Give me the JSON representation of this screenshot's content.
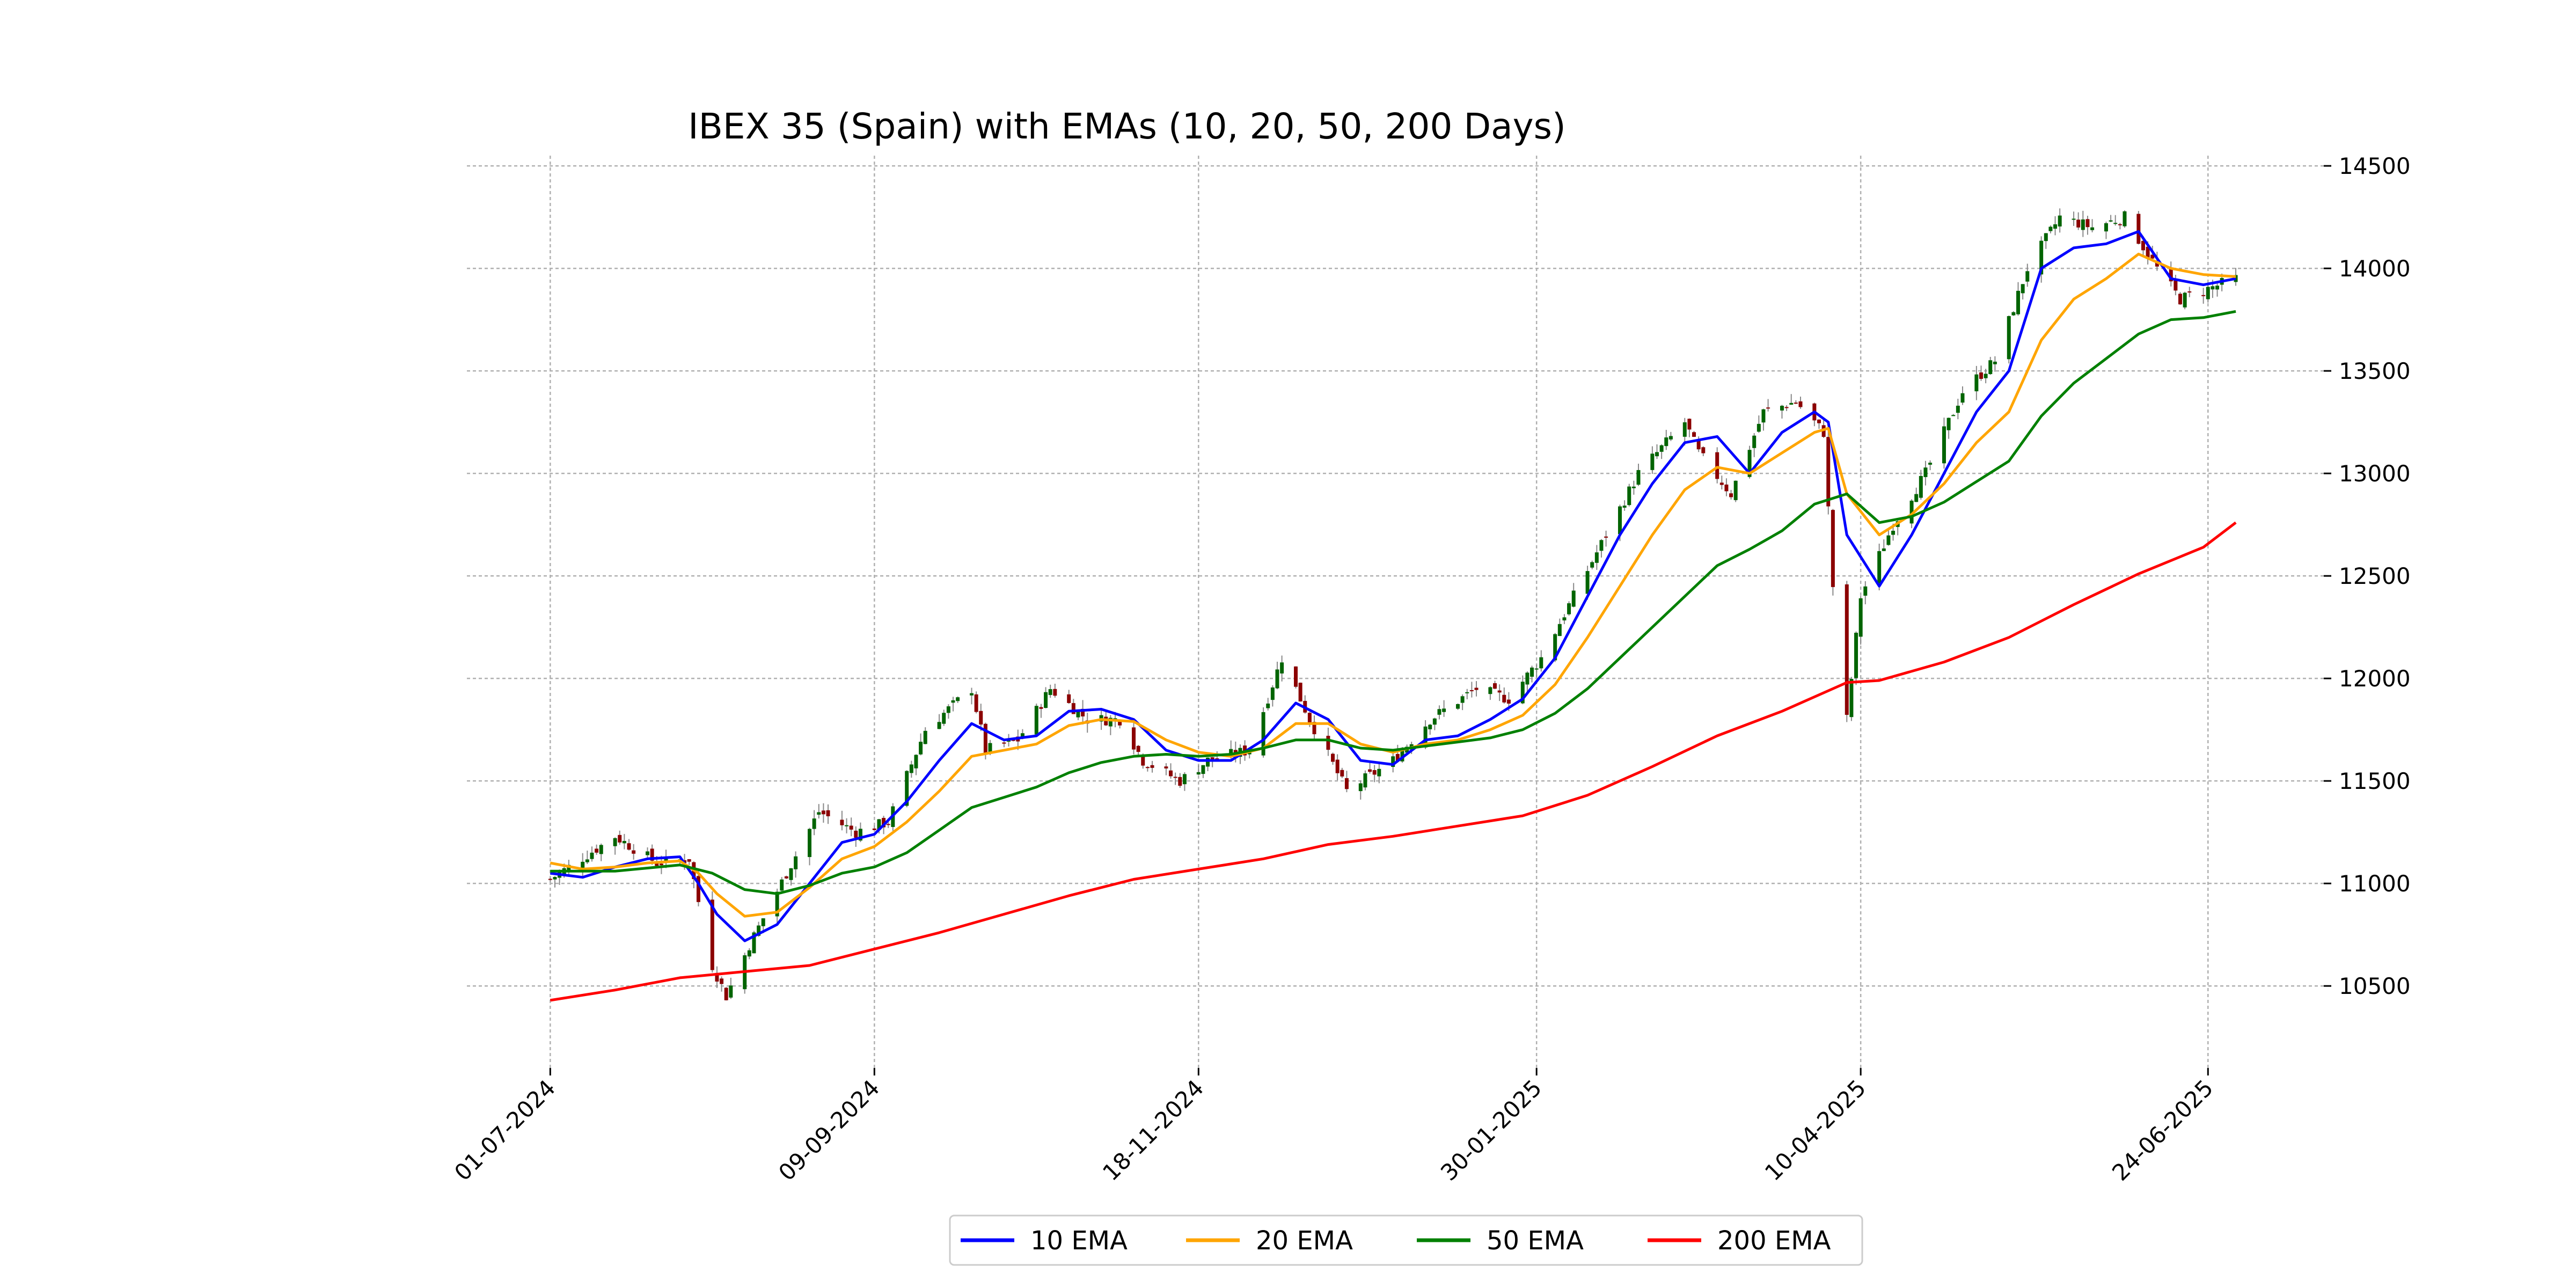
{
  "chart_data": {
    "type": "line",
    "title": "IBEX 35 (Spain) with EMAs (10, 20, 50, 200 Days)",
    "xlabel": "",
    "ylabel": "",
    "x_tick_labels": [
      "01-07-2024",
      "09-09-2024",
      "18-11-2024",
      "30-01-2025",
      "10-04-2025",
      "24-06-2025"
    ],
    "x_ticks": [
      "2024-07-01",
      "2024-09-09",
      "2024-11-18",
      "2025-01-30",
      "2025-04-10",
      "2025-06-24"
    ],
    "x_range": [
      "2024-06-13",
      "2025-07-19"
    ],
    "y_ticks": [
      10500,
      11000,
      11500,
      12000,
      12500,
      13000,
      13500,
      14000,
      14500
    ],
    "y_tick_labels": [
      "10500",
      "11000",
      "11500",
      "12000",
      "12500",
      "13000",
      "13500",
      "14000",
      "14500"
    ],
    "ylim": [
      10100,
      14550
    ],
    "grid": true,
    "y_axis_side": "right",
    "legend_placement": "bottom-center",
    "candle_colors": {
      "up": "#006400",
      "down": "#8b0000"
    },
    "candles_close": [
      {
        "date": "2024-07-01",
        "close": 11020
      },
      {
        "date": "2024-07-15",
        "close": 11230
      },
      {
        "date": "2024-07-24",
        "close": 11100
      },
      {
        "date": "2024-07-31",
        "close": 11120
      },
      {
        "date": "2024-08-05",
        "close": 10600
      },
      {
        "date": "2024-08-08",
        "close": 10450
      },
      {
        "date": "2024-08-13",
        "close": 10700
      },
      {
        "date": "2024-08-21",
        "close": 11050
      },
      {
        "date": "2024-08-28",
        "close": 11350
      },
      {
        "date": "2024-09-05",
        "close": 11250
      },
      {
        "date": "2024-09-12",
        "close": 11300
      },
      {
        "date": "2024-09-20",
        "close": 11750
      },
      {
        "date": "2024-09-30",
        "close": 11950
      },
      {
        "date": "2024-10-03",
        "close": 11650
      },
      {
        "date": "2024-10-10",
        "close": 11700
      },
      {
        "date": "2024-10-17",
        "close": 11950
      },
      {
        "date": "2024-10-25",
        "close": 11800
      },
      {
        "date": "2024-11-01",
        "close": 11800
      },
      {
        "date": "2024-11-06",
        "close": 11600
      },
      {
        "date": "2024-11-14",
        "close": 11500
      },
      {
        "date": "2024-11-20",
        "close": 11600
      },
      {
        "date": "2024-11-29",
        "close": 11650
      },
      {
        "date": "2024-12-06",
        "close": 12100
      },
      {
        "date": "2024-12-12",
        "close": 11800
      },
      {
        "date": "2024-12-20",
        "close": 11450
      },
      {
        "date": "2024-12-30",
        "close": 11600
      },
      {
        "date": "2025-01-07",
        "close": 11800
      },
      {
        "date": "2025-01-17",
        "close": 11950
      },
      {
        "date": "2025-01-24",
        "close": 11900
      },
      {
        "date": "2025-01-31",
        "close": 12100
      },
      {
        "date": "2025-02-07",
        "close": 12400
      },
      {
        "date": "2025-02-14",
        "close": 12700
      },
      {
        "date": "2025-02-21",
        "close": 13000
      },
      {
        "date": "2025-03-03",
        "close": 13250
      },
      {
        "date": "2025-03-06",
        "close": 13100
      },
      {
        "date": "2025-03-13",
        "close": 12900
      },
      {
        "date": "2025-03-20",
        "close": 13300
      },
      {
        "date": "2025-03-27",
        "close": 13350
      },
      {
        "date": "2025-04-02",
        "close": 13200
      },
      {
        "date": "2025-04-04",
        "close": 12450
      },
      {
        "date": "2025-04-07",
        "close": 11800
      },
      {
        "date": "2025-04-10",
        "close": 12400
      },
      {
        "date": "2025-04-17",
        "close": 12750
      },
      {
        "date": "2025-04-24",
        "close": 13000
      },
      {
        "date": "2025-05-02",
        "close": 13400
      },
      {
        "date": "2025-05-09",
        "close": 13550
      },
      {
        "date": "2025-05-16",
        "close": 14000
      },
      {
        "date": "2025-05-23",
        "close": 14250
      },
      {
        "date": "2025-05-30",
        "close": 14200
      },
      {
        "date": "2025-06-06",
        "close": 14250
      },
      {
        "date": "2025-06-13",
        "close": 14000
      },
      {
        "date": "2025-06-18",
        "close": 13850
      },
      {
        "date": "2025-06-24",
        "close": 13900
      },
      {
        "date": "2025-06-30",
        "close": 13950
      }
    ],
    "series": [
      {
        "name": "10 EMA",
        "color": "#0000ff",
        "points": [
          [
            "2024-07-01",
            11050
          ],
          [
            "2024-07-08",
            11030
          ],
          [
            "2024-07-15",
            11080
          ],
          [
            "2024-07-22",
            11120
          ],
          [
            "2024-07-29",
            11130
          ],
          [
            "2024-08-02",
            11000
          ],
          [
            "2024-08-06",
            10850
          ],
          [
            "2024-08-12",
            10720
          ],
          [
            "2024-08-19",
            10800
          ],
          [
            "2024-08-26",
            11000
          ],
          [
            "2024-09-02",
            11200
          ],
          [
            "2024-09-09",
            11240
          ],
          [
            "2024-09-16",
            11400
          ],
          [
            "2024-09-23",
            11600
          ],
          [
            "2024-09-30",
            11780
          ],
          [
            "2024-10-07",
            11700
          ],
          [
            "2024-10-14",
            11720
          ],
          [
            "2024-10-21",
            11840
          ],
          [
            "2024-10-28",
            11850
          ],
          [
            "2024-11-04",
            11800
          ],
          [
            "2024-11-11",
            11650
          ],
          [
            "2024-11-18",
            11600
          ],
          [
            "2024-11-25",
            11600
          ],
          [
            "2024-12-02",
            11700
          ],
          [
            "2024-12-09",
            11880
          ],
          [
            "2024-12-16",
            11800
          ],
          [
            "2024-12-23",
            11600
          ],
          [
            "2024-12-30",
            11580
          ],
          [
            "2025-01-06",
            11700
          ],
          [
            "2025-01-13",
            11720
          ],
          [
            "2025-01-20",
            11800
          ],
          [
            "2025-01-27",
            11900
          ],
          [
            "2025-02-03",
            12100
          ],
          [
            "2025-02-10",
            12400
          ],
          [
            "2025-02-17",
            12700
          ],
          [
            "2025-02-24",
            12950
          ],
          [
            "2025-03-03",
            13150
          ],
          [
            "2025-03-10",
            13180
          ],
          [
            "2025-03-17",
            13000
          ],
          [
            "2025-03-24",
            13200
          ],
          [
            "2025-03-31",
            13300
          ],
          [
            "2025-04-03",
            13250
          ],
          [
            "2025-04-07",
            12700
          ],
          [
            "2025-04-14",
            12450
          ],
          [
            "2025-04-21",
            12700
          ],
          [
            "2025-04-28",
            13000
          ],
          [
            "2025-05-05",
            13300
          ],
          [
            "2025-05-12",
            13500
          ],
          [
            "2025-05-19",
            14000
          ],
          [
            "2025-05-26",
            14100
          ],
          [
            "2025-06-02",
            14120
          ],
          [
            "2025-06-09",
            14180
          ],
          [
            "2025-06-16",
            13950
          ],
          [
            "2025-06-23",
            13920
          ],
          [
            "2025-06-30",
            13950
          ]
        ]
      },
      {
        "name": "20 EMA",
        "color": "#ffa500",
        "points": [
          [
            "2024-07-01",
            11100
          ],
          [
            "2024-07-08",
            11070
          ],
          [
            "2024-07-15",
            11080
          ],
          [
            "2024-07-22",
            11100
          ],
          [
            "2024-07-29",
            11110
          ],
          [
            "2024-08-02",
            11050
          ],
          [
            "2024-08-06",
            10950
          ],
          [
            "2024-08-12",
            10840
          ],
          [
            "2024-08-19",
            10860
          ],
          [
            "2024-08-26",
            10980
          ],
          [
            "2024-09-02",
            11120
          ],
          [
            "2024-09-09",
            11180
          ],
          [
            "2024-09-16",
            11300
          ],
          [
            "2024-09-23",
            11450
          ],
          [
            "2024-09-30",
            11620
          ],
          [
            "2024-10-07",
            11650
          ],
          [
            "2024-10-14",
            11680
          ],
          [
            "2024-10-21",
            11770
          ],
          [
            "2024-10-28",
            11800
          ],
          [
            "2024-11-04",
            11790
          ],
          [
            "2024-11-11",
            11700
          ],
          [
            "2024-11-18",
            11640
          ],
          [
            "2024-11-25",
            11620
          ],
          [
            "2024-12-02",
            11660
          ],
          [
            "2024-12-09",
            11780
          ],
          [
            "2024-12-16",
            11780
          ],
          [
            "2024-12-23",
            11680
          ],
          [
            "2024-12-30",
            11640
          ],
          [
            "2025-01-06",
            11680
          ],
          [
            "2025-01-13",
            11700
          ],
          [
            "2025-01-20",
            11750
          ],
          [
            "2025-01-27",
            11820
          ],
          [
            "2025-02-03",
            11970
          ],
          [
            "2025-02-10",
            12200
          ],
          [
            "2025-02-17",
            12450
          ],
          [
            "2025-02-24",
            12700
          ],
          [
            "2025-03-03",
            12920
          ],
          [
            "2025-03-10",
            13030
          ],
          [
            "2025-03-17",
            13000
          ],
          [
            "2025-03-24",
            13100
          ],
          [
            "2025-03-31",
            13200
          ],
          [
            "2025-04-03",
            13220
          ],
          [
            "2025-04-07",
            12900
          ],
          [
            "2025-04-14",
            12700
          ],
          [
            "2025-04-21",
            12800
          ],
          [
            "2025-04-28",
            12950
          ],
          [
            "2025-05-05",
            13150
          ],
          [
            "2025-05-12",
            13300
          ],
          [
            "2025-05-19",
            13650
          ],
          [
            "2025-05-26",
            13850
          ],
          [
            "2025-06-02",
            13950
          ],
          [
            "2025-06-09",
            14070
          ],
          [
            "2025-06-16",
            14000
          ],
          [
            "2025-06-23",
            13970
          ],
          [
            "2025-06-30",
            13960
          ]
        ]
      },
      {
        "name": "50 EMA",
        "color": "#008000",
        "points": [
          [
            "2024-07-01",
            11060
          ],
          [
            "2024-07-15",
            11060
          ],
          [
            "2024-07-29",
            11090
          ],
          [
            "2024-08-05",
            11050
          ],
          [
            "2024-08-12",
            10970
          ],
          [
            "2024-08-19",
            10950
          ],
          [
            "2024-08-26",
            10990
          ],
          [
            "2024-09-02",
            11050
          ],
          [
            "2024-09-09",
            11080
          ],
          [
            "2024-09-16",
            11150
          ],
          [
            "2024-09-23",
            11260
          ],
          [
            "2024-09-30",
            11370
          ],
          [
            "2024-10-07",
            11420
          ],
          [
            "2024-10-14",
            11470
          ],
          [
            "2024-10-21",
            11540
          ],
          [
            "2024-10-28",
            11590
          ],
          [
            "2024-11-04",
            11620
          ],
          [
            "2024-11-11",
            11630
          ],
          [
            "2024-11-18",
            11620
          ],
          [
            "2024-11-25",
            11630
          ],
          [
            "2024-12-02",
            11660
          ],
          [
            "2024-12-09",
            11700
          ],
          [
            "2024-12-16",
            11700
          ],
          [
            "2024-12-23",
            11660
          ],
          [
            "2024-12-30",
            11650
          ],
          [
            "2025-01-06",
            11670
          ],
          [
            "2025-01-13",
            11690
          ],
          [
            "2025-01-20",
            11710
          ],
          [
            "2025-01-27",
            11750
          ],
          [
            "2025-02-03",
            11830
          ],
          [
            "2025-02-10",
            11950
          ],
          [
            "2025-02-17",
            12100
          ],
          [
            "2025-02-24",
            12250
          ],
          [
            "2025-03-03",
            12400
          ],
          [
            "2025-03-10",
            12550
          ],
          [
            "2025-03-17",
            12630
          ],
          [
            "2025-03-24",
            12720
          ],
          [
            "2025-03-31",
            12850
          ],
          [
            "2025-04-07",
            12900
          ],
          [
            "2025-04-14",
            12760
          ],
          [
            "2025-04-21",
            12790
          ],
          [
            "2025-04-28",
            12860
          ],
          [
            "2025-05-05",
            12960
          ],
          [
            "2025-05-12",
            13060
          ],
          [
            "2025-05-19",
            13280
          ],
          [
            "2025-05-26",
            13440
          ],
          [
            "2025-06-02",
            13560
          ],
          [
            "2025-06-09",
            13680
          ],
          [
            "2025-06-16",
            13750
          ],
          [
            "2025-06-23",
            13760
          ],
          [
            "2025-06-30",
            13790
          ]
        ]
      },
      {
        "name": "200 EMA",
        "color": "#ff0000",
        "points": [
          [
            "2024-07-01",
            10430
          ],
          [
            "2024-07-15",
            10480
          ],
          [
            "2024-07-29",
            10540
          ],
          [
            "2024-08-12",
            10570
          ],
          [
            "2024-08-26",
            10600
          ],
          [
            "2024-09-09",
            10680
          ],
          [
            "2024-09-23",
            10760
          ],
          [
            "2024-10-07",
            10850
          ],
          [
            "2024-10-21",
            10940
          ],
          [
            "2024-11-04",
            11020
          ],
          [
            "2024-11-18",
            11070
          ],
          [
            "2024-12-02",
            11120
          ],
          [
            "2024-12-16",
            11190
          ],
          [
            "2024-12-30",
            11230
          ],
          [
            "2025-01-13",
            11280
          ],
          [
            "2025-01-27",
            11330
          ],
          [
            "2025-02-10",
            11430
          ],
          [
            "2025-02-24",
            11570
          ],
          [
            "2025-03-10",
            11720
          ],
          [
            "2025-03-24",
            11840
          ],
          [
            "2025-04-07",
            11980
          ],
          [
            "2025-04-14",
            11990
          ],
          [
            "2025-04-28",
            12080
          ],
          [
            "2025-05-12",
            12200
          ],
          [
            "2025-05-26",
            12360
          ],
          [
            "2025-06-09",
            12510
          ],
          [
            "2025-06-23",
            12640
          ],
          [
            "2025-06-30",
            12760
          ]
        ]
      }
    ]
  }
}
